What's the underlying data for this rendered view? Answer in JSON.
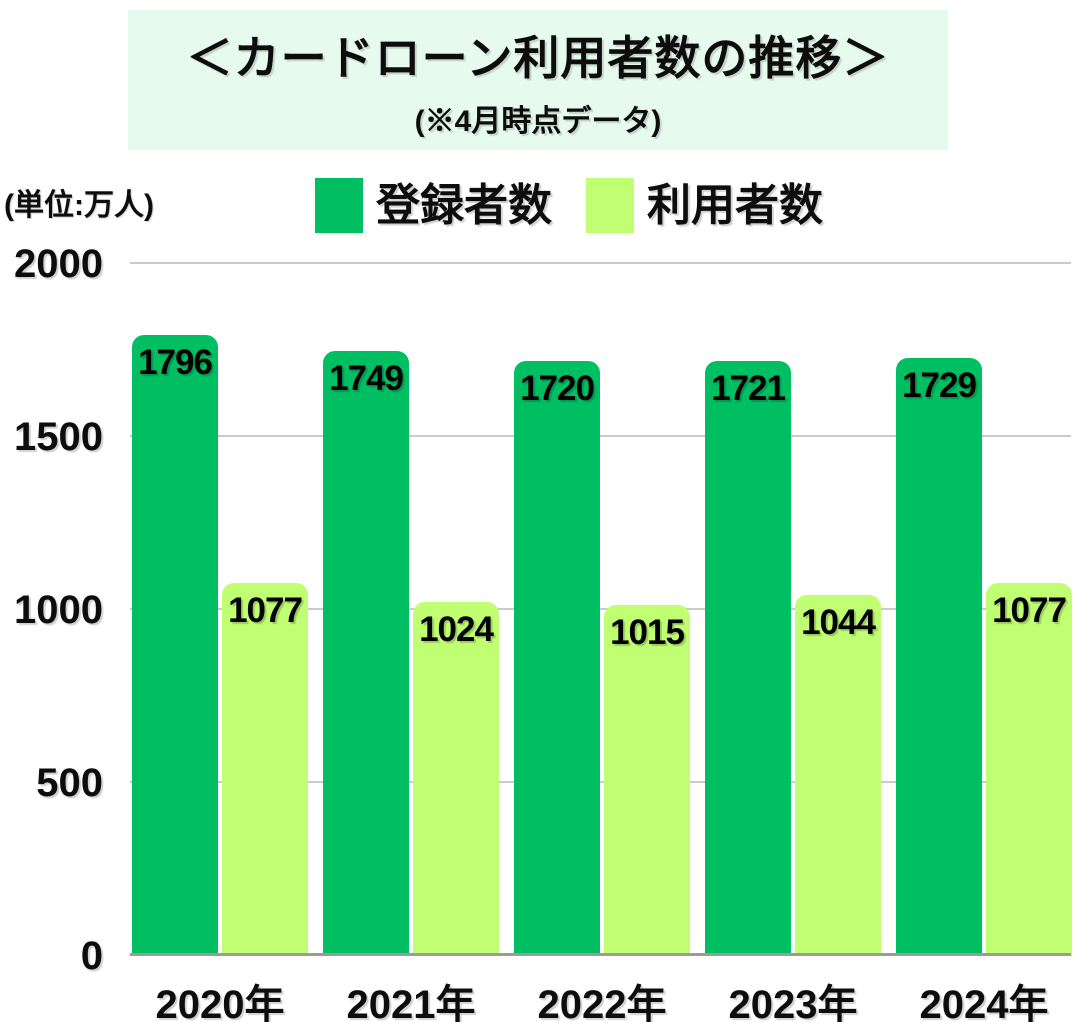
{
  "title": {
    "line1": "＜カードローン利用者数の推移＞",
    "line2": "(※4月時点データ)"
  },
  "unit_label": "(単位:万人)",
  "legend": [
    {
      "id": "registered",
      "label": "登録者数",
      "color": "#00bf63"
    },
    {
      "id": "users",
      "label": "利用者数",
      "color": "#c1ff72"
    }
  ],
  "colors": {
    "title_background": "#e6faee",
    "registered_bar": "#00bf63",
    "users_bar": "#c1ff72",
    "gridline": "#cbcbcb",
    "axis_line": "#9b9b9b",
    "text": "#0d0d0d"
  },
  "chart_data": {
    "type": "bar",
    "title": "＜カードローン利用者数の推移＞ (※4月時点データ)",
    "ylabel": "(単位:万人)",
    "categories": [
      "2020年",
      "2021年",
      "2022年",
      "2023年",
      "2024年"
    ],
    "series": [
      {
        "id": "registered",
        "name": "登録者数",
        "color": "#00bf63",
        "values": [
          1796,
          1749,
          1720,
          1721,
          1729
        ]
      },
      {
        "id": "users",
        "name": "利用者数",
        "color": "#c1ff72",
        "values": [
          1077,
          1024,
          1015,
          1044,
          1077
        ]
      }
    ],
    "ylim": [
      0,
      2000
    ],
    "yticks": [
      0,
      500,
      1000,
      1500,
      2000
    ],
    "grid": true,
    "legend_position": "top",
    "value_labels": "inside-top"
  }
}
